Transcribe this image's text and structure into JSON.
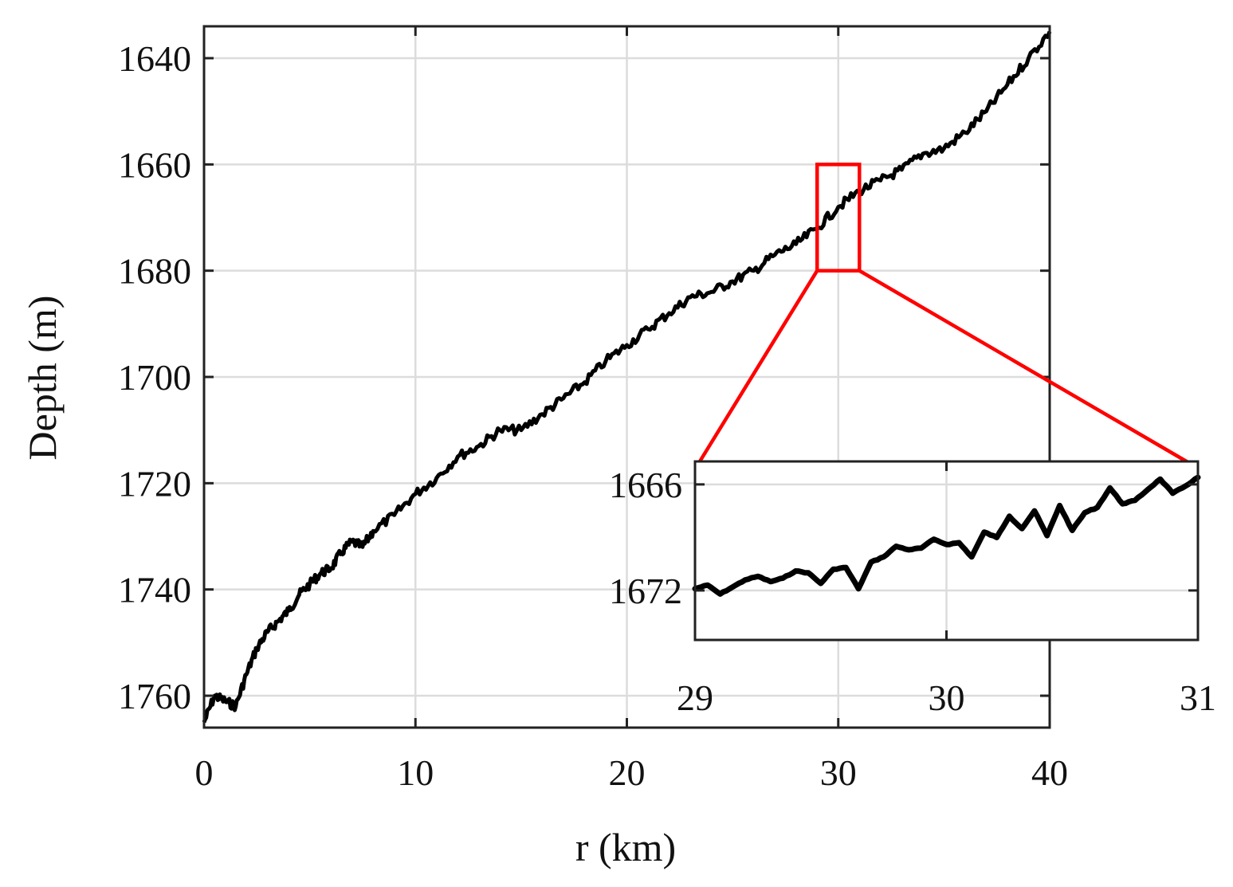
{
  "chart_data": [
    {
      "type": "line",
      "title": "",
      "xlabel": "r (km)",
      "ylabel": "Depth (m)",
      "xlim": [
        0,
        40
      ],
      "ylim": [
        1634,
        1766
      ],
      "y_reversed": true,
      "grid": true,
      "x_ticks": [
        0,
        10,
        20,
        30,
        40
      ],
      "x_tick_labels": [
        "0",
        "10",
        "20",
        "30",
        "40"
      ],
      "y_ticks": [
        1640,
        1660,
        1680,
        1700,
        1720,
        1740,
        1760
      ],
      "y_tick_labels": [
        "1640",
        "1660",
        "1680",
        "1700",
        "1720",
        "1740",
        "1760"
      ],
      "series": [
        {
          "color": "#000000",
          "x": [
            0,
            0.5,
            1,
            1.5,
            2,
            2.5,
            3,
            3.5,
            4,
            4.5,
            5,
            5.5,
            6,
            6.5,
            7,
            7.5,
            8,
            9,
            10,
            11,
            12,
            13,
            14,
            15,
            16,
            17,
            18,
            19,
            20,
            21,
            22,
            23,
            24,
            25,
            26,
            27,
            28,
            29,
            30,
            31,
            32,
            33,
            34,
            35,
            36,
            37,
            38,
            39,
            40
          ],
          "y": [
            1765,
            1760,
            1761,
            1762,
            1756,
            1751,
            1748,
            1746,
            1744,
            1741,
            1739,
            1737,
            1736,
            1733,
            1731,
            1732,
            1729,
            1726,
            1722,
            1719,
            1715,
            1713,
            1710,
            1710,
            1707,
            1704,
            1701,
            1697,
            1694,
            1691,
            1688,
            1685,
            1684,
            1682,
            1680,
            1677,
            1675,
            1672,
            1668,
            1665,
            1663,
            1661,
            1658,
            1657,
            1654,
            1650,
            1645,
            1640,
            1635
          ]
        }
      ],
      "highlight_box": {
        "color": "#ff0000",
        "x_range": [
          29,
          31
        ],
        "y_range": [
          1660,
          1680
        ]
      }
    },
    {
      "type": "line",
      "title": "",
      "xlabel": "",
      "ylabel": "",
      "xlim": [
        29,
        31
      ],
      "ylim": [
        1664.7,
        1674.8
      ],
      "y_reversed": true,
      "grid": true,
      "x_ticks": [
        29,
        30,
        31
      ],
      "x_tick_labels": [
        "29",
        "30",
        "31"
      ],
      "y_ticks": [
        1666,
        1672
      ],
      "y_tick_labels": [
        "1666",
        "1672"
      ],
      "series": [
        {
          "color": "#000000",
          "x": [
            29.0,
            29.05,
            29.1,
            29.15,
            29.2,
            29.25,
            29.3,
            29.35,
            29.4,
            29.45,
            29.5,
            29.55,
            29.6,
            29.65,
            29.7,
            29.75,
            29.8,
            29.85,
            29.9,
            29.95,
            30.0,
            30.05,
            30.1,
            30.15,
            30.2,
            30.25,
            30.3,
            30.35,
            30.4,
            30.45,
            30.5,
            30.55,
            30.6,
            30.65,
            30.7,
            30.75,
            30.8,
            30.85,
            30.9,
            30.95,
            31.0
          ],
          "y": [
            1671.9,
            1671.7,
            1672.2,
            1671.8,
            1671.4,
            1671.2,
            1671.5,
            1671.3,
            1670.9,
            1671.0,
            1671.6,
            1670.8,
            1670.7,
            1671.9,
            1670.4,
            1670.1,
            1669.5,
            1669.7,
            1669.6,
            1669.1,
            1669.4,
            1669.3,
            1670.1,
            1668.7,
            1669.0,
            1667.8,
            1668.5,
            1667.5,
            1668.9,
            1667.2,
            1668.6,
            1667.6,
            1667.3,
            1666.2,
            1667.1,
            1666.9,
            1666.3,
            1665.7,
            1666.5,
            1666.1,
            1665.6
          ]
        }
      ]
    }
  ]
}
